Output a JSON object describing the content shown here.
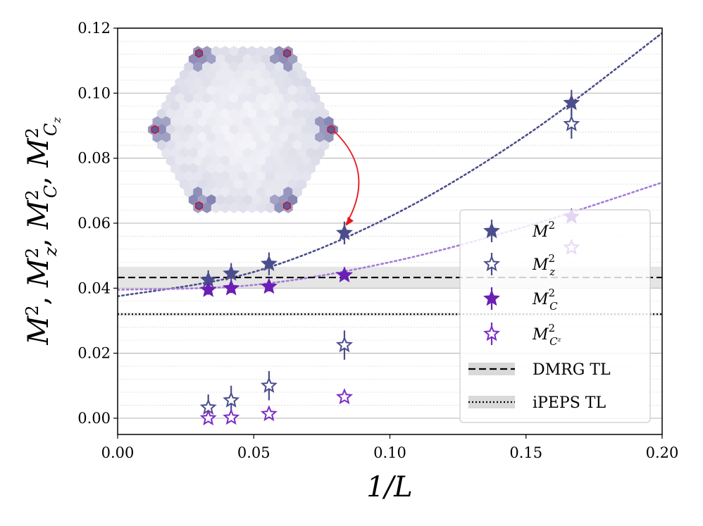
{
  "chart_data": {
    "type": "scatter",
    "title": "",
    "xlabel": "1/L",
    "ylabel": "M², M_z², M_C², M_Cz²",
    "xlim": [
      0.0,
      0.2
    ],
    "ylim": [
      -0.005,
      0.12
    ],
    "xticks": [
      "0.00",
      "0.05",
      "0.10",
      "0.15",
      "0.20"
    ],
    "yticks": [
      "0.00",
      "0.02",
      "0.04",
      "0.06",
      "0.08",
      "0.10",
      "0.12"
    ],
    "grid": "horizontal major and minor",
    "legend_position": "lower-right",
    "series": [
      {
        "name": "M^2",
        "sub": "",
        "sup": "2",
        "base": "M",
        "marker": "filled-star",
        "color": "#4b4d8c",
        "x": [
          0.0333,
          0.0417,
          0.0556,
          0.0833,
          0.1667
        ],
        "y": [
          0.0425,
          0.0445,
          0.0475,
          0.057,
          0.097
        ],
        "err": [
          0.003,
          0.0032,
          0.0035,
          0.0035,
          0.004
        ]
      },
      {
        "name": "M_z^2",
        "sub": "z",
        "sup": "2",
        "base": "M",
        "marker": "open-star",
        "color": "#4b4d8c",
        "x": [
          0.0333,
          0.0417,
          0.0556,
          0.0833,
          0.1667
        ],
        "y": [
          0.0033,
          0.0055,
          0.01,
          0.0225,
          0.0905
        ],
        "err": [
          0.004,
          0.0045,
          0.0045,
          0.0045,
          0.0045
        ]
      },
      {
        "name": "M_C^2",
        "sub": "C",
        "sup": "2",
        "base": "M",
        "marker": "filled-star",
        "color": "#6a1fb5",
        "x": [
          0.0333,
          0.0417,
          0.0556,
          0.0833
        ],
        "y": [
          0.0395,
          0.04,
          0.0405,
          0.044
        ],
        "err": [
          0.0015,
          0.0015,
          0.0015,
          0.001
        ]
      },
      {
        "name": "M_Cz^2",
        "sub": "Cᶻ",
        "sup": "2",
        "base": "M",
        "marker": "open-star",
        "color": "#7b2cc4",
        "x": [
          0.0333,
          0.0417,
          0.0556,
          0.0833
        ],
        "y": [
          0.0,
          0.0002,
          0.0013,
          0.0065
        ],
        "err": [
          0.0005,
          0.0005,
          0.0005,
          0.0005
        ]
      }
    ],
    "fits": [
      {
        "series": "M^2",
        "color": "#4b4d8c",
        "curve": [
          [
            0.0,
            0.0375
          ],
          [
            0.05,
            0.045
          ],
          [
            0.1,
            0.062
          ],
          [
            0.15,
            0.087
          ],
          [
            0.2,
            0.1185
          ]
        ]
      },
      {
        "series": "M_C^2",
        "color": "#a47cd6",
        "curve": [
          [
            0.0,
            0.0395
          ],
          [
            0.05,
            0.041
          ],
          [
            0.1,
            0.048
          ],
          [
            0.15,
            0.059
          ],
          [
            0.2,
            0.0725
          ]
        ]
      }
    ],
    "reference_lines": [
      {
        "name": "DMRG TL",
        "style": "dashed",
        "y": 0.0433,
        "band": [
          0.04,
          0.0466
        ]
      },
      {
        "name": "iPEPS TL",
        "style": "dotted",
        "y": 0.032,
        "band": [
          0.0315,
          0.0325
        ]
      }
    ],
    "fade_legend_box_overlapping_ghost_points": [
      {
        "series": "M_C^2",
        "x": 0.1667,
        "y": 0.062
      },
      {
        "series": "M_Cz^2",
        "x": 0.1667,
        "y": 0.0525
      }
    ],
    "inset": {
      "description_free": true,
      "colors": {
        "low": "#ffffff",
        "high": "#5b5c99",
        "site_edge": "#c01a3a"
      },
      "arrow_color": "#e8161b"
    }
  }
}
